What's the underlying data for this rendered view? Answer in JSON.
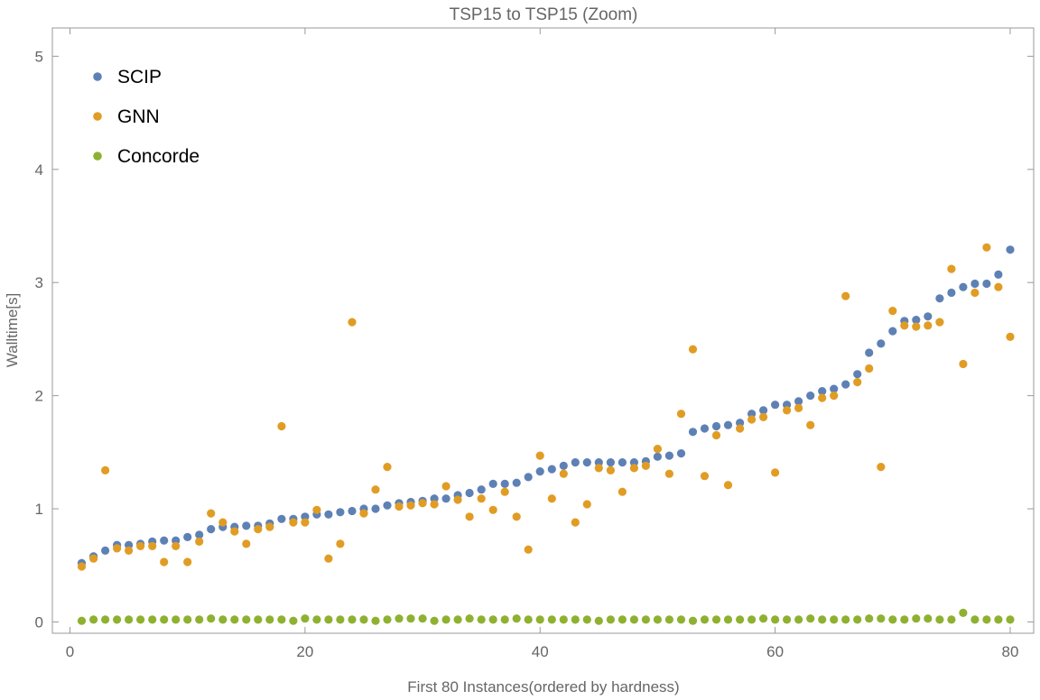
{
  "chart_data": {
    "type": "scatter",
    "title": "TSP15 to TSP15 (Zoom)",
    "xlabel": "First 80 Instances(ordered by hardness)",
    "ylabel": "Walltime[s]",
    "xlim": [
      -1.5,
      82
    ],
    "ylim": [
      -0.1,
      5.25
    ],
    "xticks": [
      0,
      20,
      40,
      60,
      80
    ],
    "yticks": [
      0,
      1,
      2,
      3,
      4,
      5
    ],
    "grid": false,
    "legend_position": "top-left",
    "series": [
      {
        "name": "SCIP",
        "color": "#5E81B5",
        "x": [
          1,
          2,
          3,
          4,
          5,
          6,
          7,
          8,
          9,
          10,
          11,
          12,
          13,
          14,
          15,
          16,
          17,
          18,
          19,
          20,
          21,
          22,
          23,
          24,
          25,
          26,
          27,
          28,
          29,
          30,
          31,
          32,
          33,
          34,
          35,
          36,
          37,
          38,
          39,
          40,
          41,
          42,
          43,
          44,
          45,
          46,
          47,
          48,
          49,
          50,
          51,
          52,
          53,
          54,
          55,
          56,
          57,
          58,
          59,
          60,
          61,
          62,
          63,
          64,
          65,
          66,
          67,
          68,
          69,
          70,
          71,
          72,
          73,
          74,
          75,
          76,
          77,
          78,
          79,
          80
        ],
        "y": [
          0.52,
          0.58,
          0.63,
          0.68,
          0.68,
          0.69,
          0.71,
          0.72,
          0.72,
          0.75,
          0.77,
          0.82,
          0.84,
          0.84,
          0.85,
          0.85,
          0.87,
          0.91,
          0.91,
          0.93,
          0.95,
          0.95,
          0.97,
          0.98,
          1.0,
          1.0,
          1.03,
          1.05,
          1.06,
          1.07,
          1.09,
          1.09,
          1.12,
          1.14,
          1.17,
          1.22,
          1.22,
          1.23,
          1.28,
          1.33,
          1.35,
          1.38,
          1.41,
          1.41,
          1.41,
          1.41,
          1.41,
          1.41,
          1.42,
          1.46,
          1.47,
          1.49,
          1.68,
          1.71,
          1.73,
          1.74,
          1.76,
          1.84,
          1.87,
          1.92,
          1.92,
          1.95,
          2.0,
          2.04,
          2.06,
          2.1,
          2.19,
          2.38,
          2.46,
          2.57,
          2.66,
          2.67,
          2.7,
          2.86,
          2.91,
          2.96,
          2.99,
          2.99,
          3.07,
          3.29
        ]
      },
      {
        "name": "GNN",
        "color": "#E19C24",
        "x": [
          1,
          2,
          3,
          4,
          5,
          6,
          7,
          8,
          9,
          10,
          11,
          12,
          13,
          14,
          15,
          16,
          17,
          18,
          19,
          20,
          21,
          22,
          23,
          24,
          25,
          26,
          27,
          28,
          29,
          30,
          31,
          32,
          33,
          34,
          35,
          36,
          37,
          38,
          39,
          40,
          41,
          42,
          43,
          44,
          45,
          46,
          47,
          48,
          49,
          50,
          51,
          52,
          53,
          54,
          55,
          56,
          57,
          58,
          59,
          60,
          61,
          62,
          63,
          64,
          65,
          66,
          67,
          68,
          69,
          70,
          71,
          72,
          73,
          74,
          75,
          76,
          77,
          78,
          79,
          80
        ],
        "y": [
          0.49,
          0.56,
          1.34,
          0.65,
          0.63,
          0.67,
          0.67,
          0.53,
          0.67,
          0.53,
          0.71,
          0.96,
          0.88,
          0.8,
          0.69,
          0.82,
          0.84,
          1.73,
          0.88,
          0.88,
          0.99,
          0.56,
          0.69,
          2.65,
          0.96,
          1.17,
          1.37,
          1.02,
          1.03,
          1.05,
          1.04,
          1.2,
          1.08,
          0.93,
          1.09,
          0.99,
          1.15,
          0.93,
          0.64,
          1.47,
          1.09,
          1.31,
          0.88,
          1.04,
          1.36,
          1.34,
          1.15,
          1.36,
          1.38,
          1.53,
          1.31,
          1.84,
          2.41,
          1.29,
          1.65,
          1.21,
          1.71,
          1.79,
          1.81,
          1.32,
          1.87,
          1.89,
          1.74,
          1.98,
          2.0,
          2.88,
          2.12,
          2.24,
          1.37,
          2.75,
          2.62,
          2.61,
          2.62,
          2.65,
          3.12,
          2.28,
          2.91,
          3.31,
          2.96,
          2.52
        ]
      },
      {
        "name": "Concorde",
        "color": "#8FB131",
        "x": [
          1,
          2,
          3,
          4,
          5,
          6,
          7,
          8,
          9,
          10,
          11,
          12,
          13,
          14,
          15,
          16,
          17,
          18,
          19,
          20,
          21,
          22,
          23,
          24,
          25,
          26,
          27,
          28,
          29,
          30,
          31,
          32,
          33,
          34,
          35,
          36,
          37,
          38,
          39,
          40,
          41,
          42,
          43,
          44,
          45,
          46,
          47,
          48,
          49,
          50,
          51,
          52,
          53,
          54,
          55,
          56,
          57,
          58,
          59,
          60,
          61,
          62,
          63,
          64,
          65,
          66,
          67,
          68,
          69,
          70,
          71,
          72,
          73,
          74,
          75,
          76,
          77,
          78,
          79,
          80
        ],
        "y": [
          0.01,
          0.02,
          0.02,
          0.02,
          0.02,
          0.02,
          0.02,
          0.02,
          0.02,
          0.02,
          0.02,
          0.03,
          0.02,
          0.02,
          0.02,
          0.02,
          0.02,
          0.02,
          0.01,
          0.03,
          0.02,
          0.02,
          0.02,
          0.02,
          0.02,
          0.01,
          0.02,
          0.03,
          0.03,
          0.03,
          0.01,
          0.02,
          0.02,
          0.03,
          0.02,
          0.02,
          0.02,
          0.03,
          0.02,
          0.02,
          0.02,
          0.02,
          0.02,
          0.02,
          0.01,
          0.02,
          0.02,
          0.02,
          0.02,
          0.02,
          0.02,
          0.02,
          0.01,
          0.02,
          0.02,
          0.02,
          0.02,
          0.02,
          0.03,
          0.02,
          0.02,
          0.02,
          0.03,
          0.02,
          0.02,
          0.02,
          0.02,
          0.03,
          0.03,
          0.02,
          0.02,
          0.03,
          0.03,
          0.02,
          0.02,
          0.08,
          0.02,
          0.02,
          0.02,
          0.02
        ]
      }
    ]
  }
}
